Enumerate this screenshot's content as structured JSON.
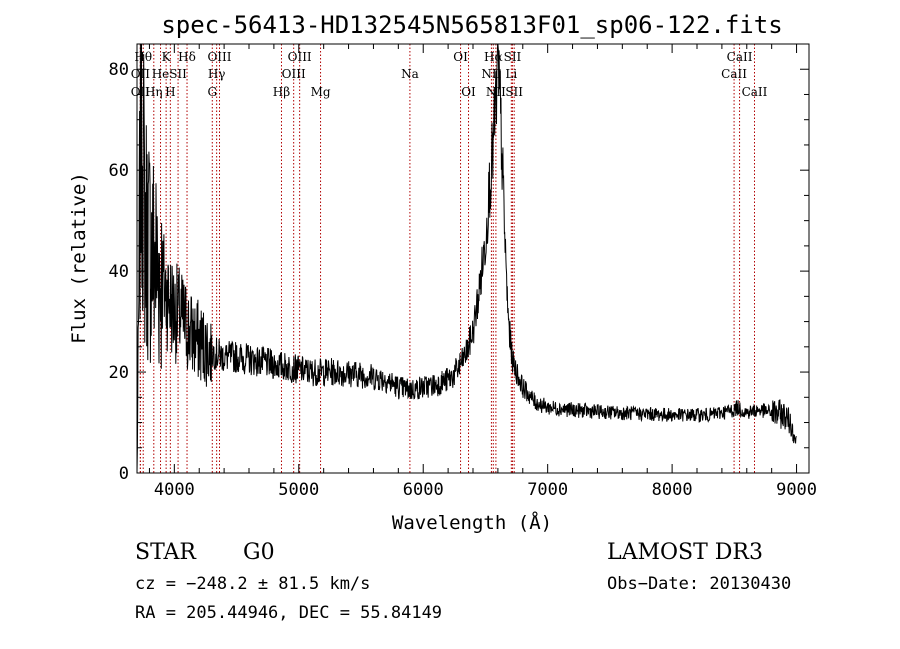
{
  "chart_data": {
    "type": "line",
    "title": "spec-56413-HD132545N565813F01_sp06-122.fits",
    "xlabel": "Wavelength (Å)",
    "ylabel": "Flux (relative)",
    "xlim": [
      3700,
      9100
    ],
    "ylim": [
      0,
      85
    ],
    "xticks": [
      4000,
      5000,
      6000,
      7000,
      8000,
      9000
    ],
    "yticks": [
      0,
      20,
      40,
      60,
      80
    ],
    "x_minor_step": 200,
    "y_minor_step": 5,
    "line_color": "#000000",
    "marker_color": "#b00000",
    "spectrum_anchors": {
      "x": [
        3700,
        3712,
        3725,
        3740,
        3760,
        3800,
        3850,
        3900,
        3950,
        4000,
        4050,
        4100,
        4150,
        4200,
        4300,
        4400,
        4500,
        4700,
        4900,
        5100,
        5300,
        5500,
        5700,
        5800,
        5900,
        6000,
        6100,
        6200,
        6250,
        6300,
        6350,
        6400,
        6450,
        6500,
        6530,
        6560,
        6580,
        6600,
        6620,
        6640,
        6660,
        6680,
        6700,
        6720,
        6750,
        6800,
        6850,
        6900,
        7000,
        7200,
        7500,
        8000,
        8300,
        8500,
        8520,
        8600,
        8700,
        8800,
        8900,
        8950,
        9000
      ],
      "y": [
        0,
        25,
        60,
        72,
        50,
        45,
        42,
        38,
        35,
        32,
        31,
        29,
        27,
        26,
        24,
        23,
        23,
        22,
        21,
        20,
        20,
        19.5,
        18.5,
        17,
        16.5,
        17,
        17.5,
        18.5,
        19.5,
        21.5,
        24,
        28,
        36,
        46,
        56,
        64,
        72,
        80,
        72,
        58,
        44,
        32,
        26,
        22,
        20,
        17,
        15.5,
        14,
        13,
        12.5,
        12,
        11.5,
        11.5,
        12.5,
        13,
        12,
        12.5,
        12,
        11.5,
        10,
        6
      ]
    },
    "lines": [
      {
        "label": "OII",
        "x": 3727,
        "row": 2,
        "align": "center"
      },
      {
        "label": "OII",
        "x": 3727,
        "row": 1,
        "align": "center"
      },
      {
        "label": "Hθ",
        "x": 3750,
        "row": 0,
        "align": "center"
      },
      {
        "label": "Hη",
        "x": 3835,
        "row": 2,
        "align": "center"
      },
      {
        "label": "He",
        "x": 3889,
        "row": 1,
        "align": "center"
      },
      {
        "label": "K",
        "x": 3934,
        "row": 0,
        "align": "center"
      },
      {
        "label": "SII",
        "x": 4030,
        "row": 1,
        "align": "center"
      },
      {
        "label": "H",
        "x": 3968,
        "row": 2,
        "align": "center"
      },
      {
        "label": "Hδ",
        "x": 4102,
        "row": 0,
        "align": "center"
      },
      {
        "label": "Hγ",
        "x": 4340,
        "row": 1,
        "align": "center"
      },
      {
        "label": "OIII",
        "x": 4363,
        "row": 0,
        "align": "center"
      },
      {
        "label": "G",
        "x": 4305,
        "row": 2,
        "align": "center"
      },
      {
        "label": "Hβ",
        "x": 4861,
        "row": 2,
        "align": "center"
      },
      {
        "label": "OIII",
        "x": 4959,
        "row": 1,
        "align": "center"
      },
      {
        "label": "OIII",
        "x": 5007,
        "row": 0,
        "align": "center"
      },
      {
        "label": "Mg",
        "x": 5175,
        "row": 2,
        "align": "center"
      },
      {
        "label": "Na",
        "x": 5893,
        "row": 1,
        "align": "center"
      },
      {
        "label": "OI",
        "x": 6300,
        "row": 0,
        "align": "center"
      },
      {
        "label": "OI",
        "x": 6364,
        "row": 2,
        "align": "center"
      },
      {
        "label": "Hα",
        "x": 6563,
        "row": 0,
        "align": "center"
      },
      {
        "label": "NII",
        "x": 6548,
        "row": 1,
        "align": "center"
      },
      {
        "label": "NII",
        "x": 6584,
        "row": 2,
        "align": "center"
      },
      {
        "label": "SII",
        "x": 6717,
        "row": 0,
        "align": "center"
      },
      {
        "label": "Li",
        "x": 6708,
        "row": 1,
        "align": "center"
      },
      {
        "label": "SII",
        "x": 6731,
        "row": 2,
        "align": "center"
      },
      {
        "label": "CaII",
        "x": 8542,
        "row": 0,
        "align": "center"
      },
      {
        "label": "CaII",
        "x": 8498,
        "row": 1,
        "align": "center"
      },
      {
        "label": "CaII",
        "x": 8662,
        "row": 2,
        "align": "center"
      }
    ]
  },
  "footer": {
    "class": "STAR",
    "subclass": "G0",
    "survey": "LAMOST DR3",
    "cz": "cz = −248.2 ± 81.5 km/s",
    "obs_date": "Obs−Date: 20130430",
    "coords": "RA = 205.44946, DEC =  55.84149"
  }
}
